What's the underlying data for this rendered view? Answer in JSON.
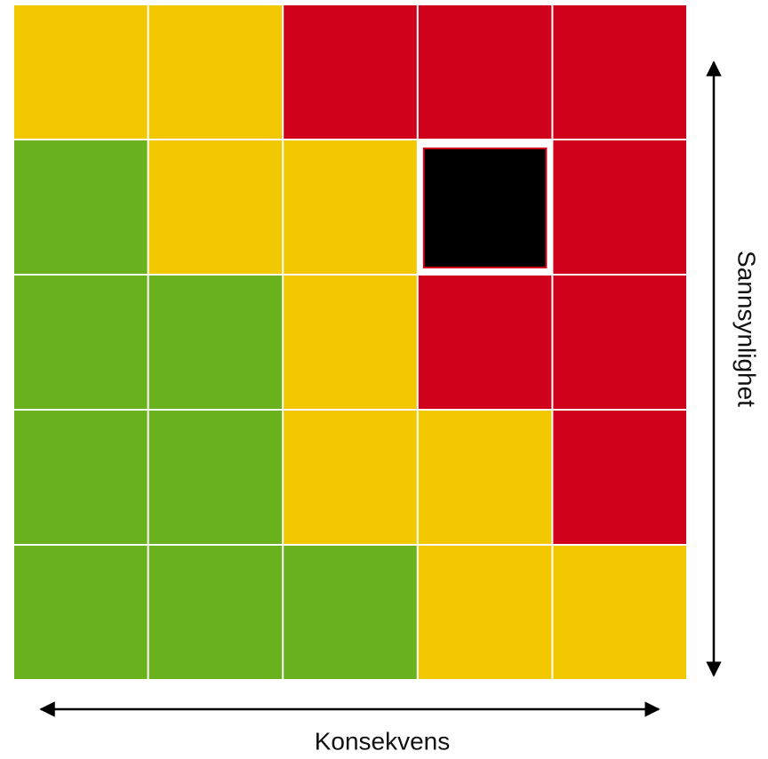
{
  "axis_labels": {
    "x": "Konsekvens",
    "y": "Sannsynlighet"
  },
  "matrix": {
    "cells": [
      [
        "#f2c800",
        "#f2c800",
        "#d0021b",
        "#d0021b",
        "#d0021b"
      ],
      [
        "#6ab21d",
        "#f2c800",
        "#f2c800",
        "#000000",
        "#d0021b"
      ],
      [
        "#6ab21d",
        "#6ab21d",
        "#f2c800",
        "#d0021b",
        "#d0021b"
      ],
      [
        "#6ab21d",
        "#6ab21d",
        "#f2c800",
        "#f2c800",
        "#d0021b"
      ],
      [
        "#6ab21d",
        "#6ab21d",
        "#6ab21d",
        "#f2c800",
        "#f2c800"
      ]
    ]
  }
}
